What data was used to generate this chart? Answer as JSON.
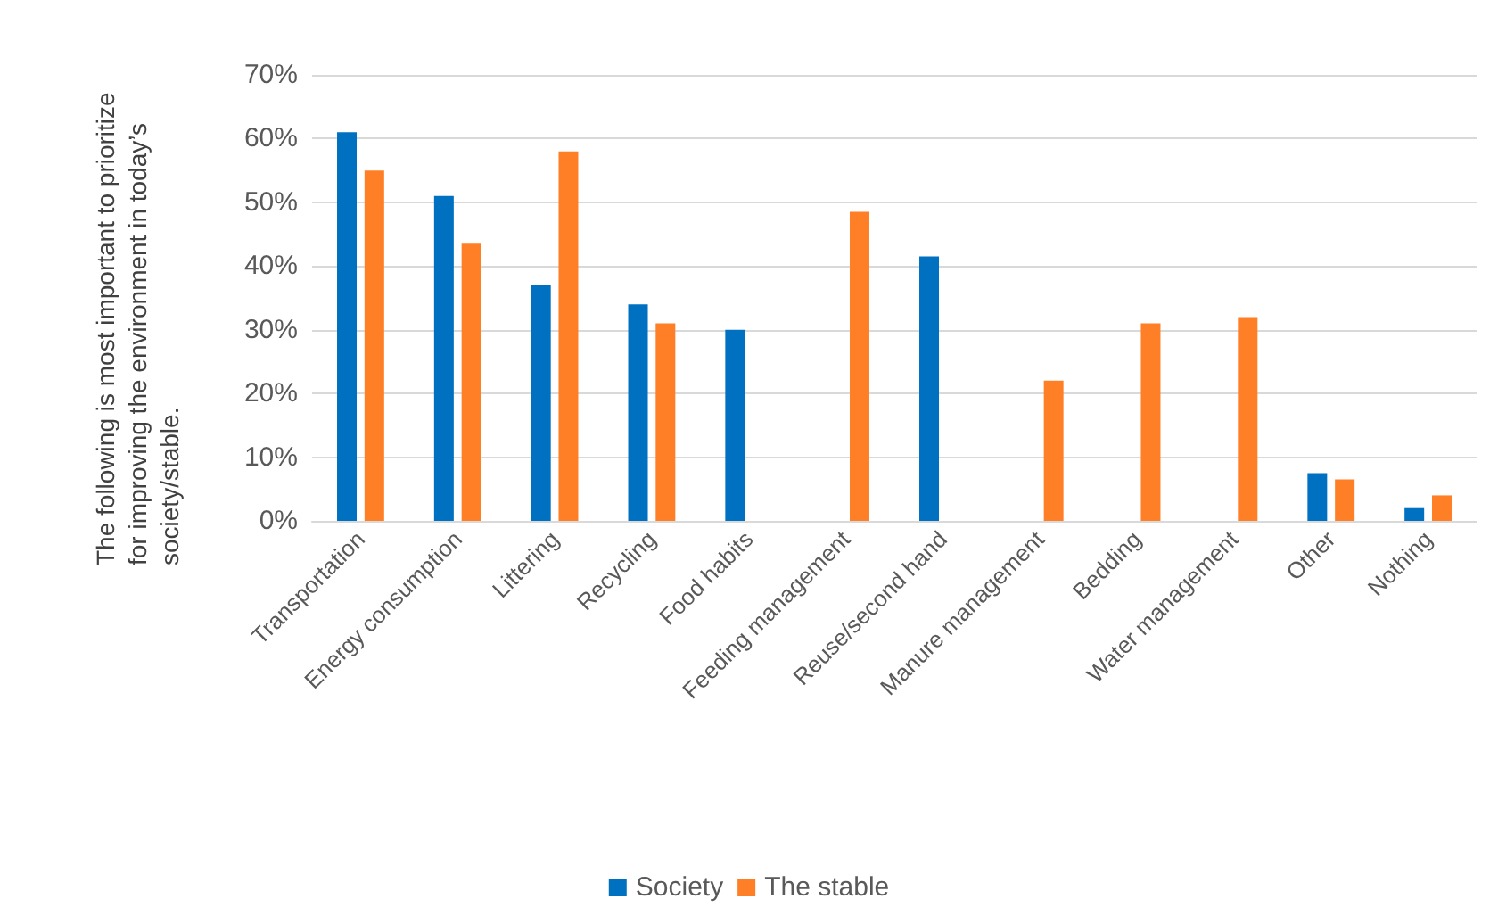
{
  "chart_data": {
    "type": "bar",
    "ylabel": "The following is most important to prioritize for improving the environment in today’s society/stable.",
    "categories": [
      "Transportation",
      "Energy consumption",
      "Littering",
      "Recycling",
      "Food habits",
      "Feeding management",
      "Reuse/second hand",
      "Manure management",
      "Bedding",
      "Water management",
      "Other",
      "Nothing"
    ],
    "series": [
      {
        "name": "Society",
        "color": "#0070c0",
        "values": [
          61,
          51,
          37,
          34,
          30,
          null,
          41.5,
          null,
          null,
          null,
          7.5,
          2
        ]
      },
      {
        "name": "The stable",
        "color": "#ff7f27",
        "values": [
          55,
          43.5,
          58,
          31,
          null,
          48.5,
          null,
          22,
          31,
          32,
          6.5,
          4
        ]
      }
    ],
    "ylim": [
      0,
      70
    ],
    "yticks": [
      {
        "value": 0,
        "label": "0%"
      },
      {
        "value": 10,
        "label": "10%"
      },
      {
        "value": 20,
        "label": "20%"
      },
      {
        "value": 30,
        "label": "30%"
      },
      {
        "value": 40,
        "label": "40%"
      },
      {
        "value": 50,
        "label": "50%"
      },
      {
        "value": 60,
        "label": "60%"
      },
      {
        "value": 70,
        "label": "70%"
      }
    ],
    "grid": "y",
    "legend": "bottom"
  }
}
